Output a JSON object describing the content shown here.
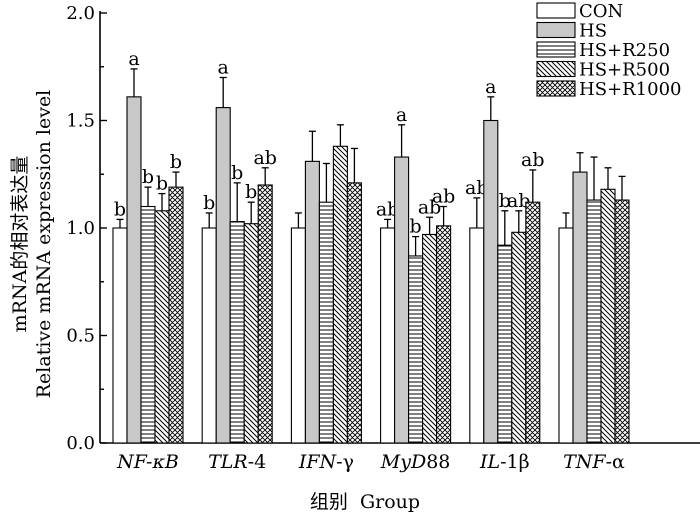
{
  "chart_data": {
    "type": "bar",
    "categories": [
      "NF-κB",
      "TLR-4",
      "IFN-γ",
      "MyD88",
      "IL-1β",
      "TNF-α"
    ],
    "category_parts": [
      {
        "italic": "NF-κB",
        "plain": ""
      },
      {
        "italic": "TLR",
        "plain": "-4"
      },
      {
        "italic": "IFN",
        "plain": "-γ"
      },
      {
        "italic": "MyD",
        "plain": "88"
      },
      {
        "italic": "IL",
        "plain": "-1β"
      },
      {
        "italic": "TNF",
        "plain": "-α"
      }
    ],
    "series": [
      {
        "name": "CON",
        "pattern": "none",
        "values": [
          1.0,
          1.0,
          1.0,
          1.0,
          1.0,
          1.0
        ],
        "errors": [
          0.04,
          0.07,
          0.07,
          0.04,
          0.14,
          0.07
        ],
        "labels": [
          "b",
          "b",
          "",
          "ab",
          "ab",
          ""
        ]
      },
      {
        "name": "HS",
        "pattern": "gray",
        "values": [
          1.61,
          1.56,
          1.31,
          1.33,
          1.5,
          1.26
        ],
        "errors": [
          0.13,
          0.14,
          0.14,
          0.15,
          0.11,
          0.09
        ],
        "labels": [
          "a",
          "a",
          "",
          "a",
          "a",
          ""
        ]
      },
      {
        "name": "HS+R250",
        "pattern": "horizontal",
        "values": [
          1.1,
          1.03,
          1.12,
          0.87,
          0.92,
          1.13
        ],
        "errors": [
          0.09,
          0.18,
          0.18,
          0.09,
          0.16,
          0.2
        ],
        "labels": [
          "b",
          "b",
          "",
          "b",
          "b",
          ""
        ]
      },
      {
        "name": "HS+R500",
        "pattern": "diagonal",
        "values": [
          1.08,
          1.02,
          1.38,
          0.97,
          0.98,
          1.18
        ],
        "errors": [
          0.08,
          0.1,
          0.1,
          0.08,
          0.1,
          0.1
        ],
        "labels": [
          "b",
          "b",
          "",
          "ab",
          "ab",
          ""
        ]
      },
      {
        "name": "HS+R1000",
        "pattern": "crosshatch",
        "values": [
          1.19,
          1.2,
          1.21,
          1.01,
          1.12,
          1.13
        ],
        "errors": [
          0.07,
          0.08,
          0.16,
          0.09,
          0.15,
          0.11
        ],
        "labels": [
          "b",
          "ab",
          "",
          "ab",
          "ab",
          ""
        ]
      }
    ],
    "ylabel_cn": "mRNA的相对表达量",
    "ylabel_en": "Relative mRNA expression level",
    "xlabel": "组别  Group",
    "ylim": [
      0,
      2.0
    ],
    "yticks": [
      "0.0",
      "0.5",
      "1.0",
      "1.5",
      "2.0"
    ],
    "legend_position": "top-right",
    "grid": false
  }
}
